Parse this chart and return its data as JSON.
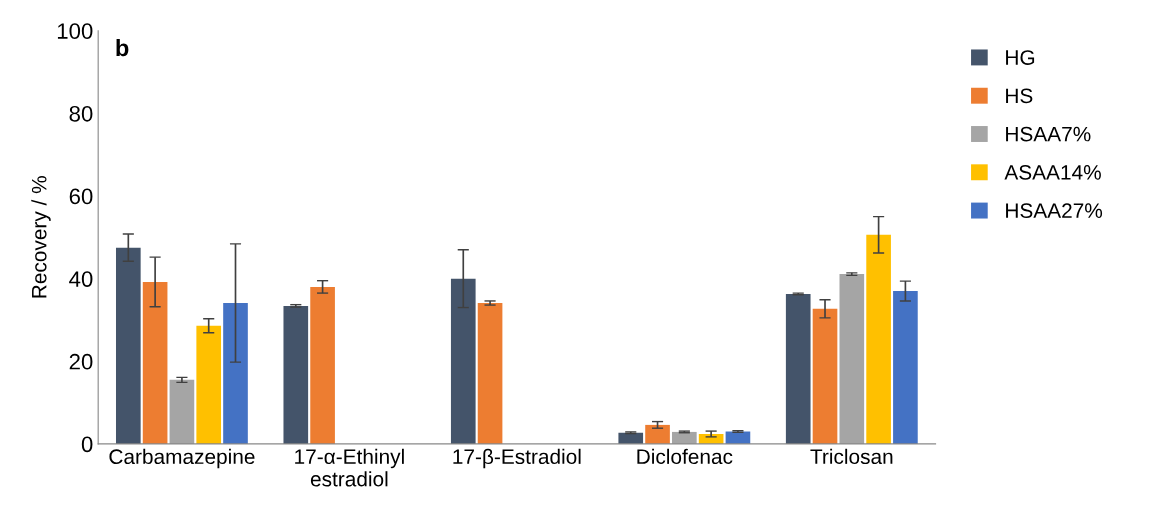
{
  "chart_data": {
    "type": "bar",
    "ylabel": "Recovery / %",
    "annotations": [
      "b"
    ],
    "categories": [
      "Carbamazepine",
      "17-α-Ethinyl\nestradiol",
      "17-β-Estradiol",
      "Diclofenac",
      "Triclosan"
    ],
    "series": [
      {
        "name": "HG",
        "color": "#44546a",
        "values": [
          47.5,
          33.4,
          40.0,
          2.7,
          36.3
        ],
        "errors": [
          3.3,
          0.3,
          7.0,
          0.2,
          0.2
        ]
      },
      {
        "name": "HS",
        "color": "#ed7d31",
        "values": [
          39.2,
          38.0,
          34.1,
          4.6,
          32.7
        ],
        "errors": [
          6.0,
          1.5,
          0.5,
          0.8,
          2.2
        ]
      },
      {
        "name": "HSAA7%",
        "color": "#a5a5a5",
        "values": [
          15.5,
          0,
          0,
          2.9,
          41.1
        ],
        "errors": [
          0.6,
          null,
          null,
          0.2,
          0.3
        ]
      },
      {
        "name": "ASAA14%",
        "color": "#ffc000",
        "values": [
          28.6,
          0,
          0,
          2.4,
          50.6
        ],
        "errors": [
          1.7,
          null,
          null,
          0.7,
          4.4
        ]
      },
      {
        "name": "HSAA27%",
        "color": "#4472c4",
        "values": [
          34.1,
          0,
          0,
          3.0,
          37.0
        ],
        "errors": [
          14.3,
          null,
          null,
          0.2,
          2.4
        ]
      }
    ],
    "ylim": [
      0,
      100
    ],
    "yticks": [
      0,
      20,
      40,
      60,
      80,
      100
    ],
    "grid": false,
    "legend": "top right"
  }
}
